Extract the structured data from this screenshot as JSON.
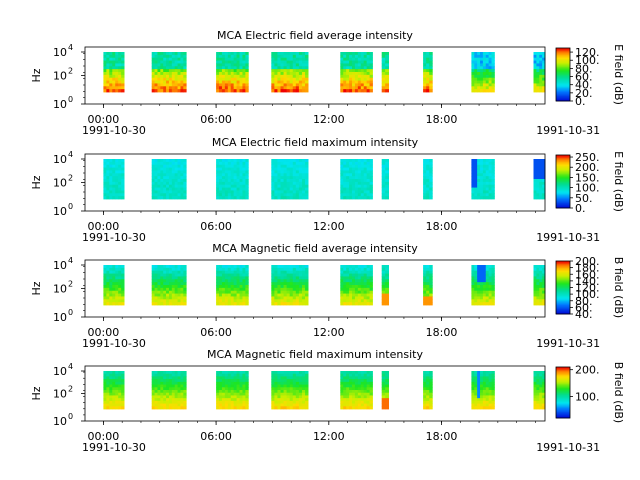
{
  "chart_data": [
    {
      "type": "heatmap",
      "title": "MCA  Electric field average intensity",
      "ylabel": "Hz",
      "cbar_label": "E field (dB)",
      "cbar_ticks": [
        "0.",
        "20.",
        "40.",
        "60.",
        "80.",
        "100.",
        "120."
      ],
      "cbar_range": [
        0,
        130
      ],
      "y_ticks": [
        "10",
        "10",
        "10"
      ],
      "y_exps": [
        "0",
        "2",
        "4"
      ],
      "x_ticks": [
        "00:00",
        "06:00",
        "12:00",
        "18:00",
        "00:00"
      ],
      "date_start": "1991-10-30",
      "date_end": "1991-10-31",
      "pattern": "e_avg"
    },
    {
      "type": "heatmap",
      "title": "MCA  Electric field maximum intensity",
      "ylabel": "Hz",
      "cbar_label": "E field (dB)",
      "cbar_ticks": [
        "0.",
        "50.",
        "100.",
        "150.",
        "200.",
        "250."
      ],
      "cbar_range": [
        0,
        260
      ],
      "y_ticks": [
        "10",
        "10",
        "10"
      ],
      "y_exps": [
        "0",
        "2",
        "4"
      ],
      "x_ticks": [
        "00:00",
        "06:00",
        "12:00",
        "18:00",
        "00:00"
      ],
      "date_start": "1991-10-30",
      "date_end": "1991-10-31",
      "pattern": "e_max"
    },
    {
      "type": "heatmap",
      "title": "MCA  Magnetic field average intensity",
      "ylabel": "Hz",
      "cbar_label": "B field (dB)",
      "cbar_ticks": [
        "40.",
        "60.",
        "80.",
        "100.",
        "120.",
        "140.",
        "160.",
        "180.",
        "200."
      ],
      "cbar_range": [
        40,
        200
      ],
      "y_ticks": [
        "10",
        "10",
        "10"
      ],
      "y_exps": [
        "0",
        "2",
        "4"
      ],
      "x_ticks": [
        "00:00",
        "06:00",
        "12:00",
        "18:00",
        "00:00"
      ],
      "date_start": "1991-10-30",
      "date_end": "1991-10-31",
      "pattern": "b_avg"
    },
    {
      "type": "heatmap",
      "title": "MCA  Magnetic field maximum intensity",
      "ylabel": "Hz",
      "cbar_label": "B field (dB)",
      "cbar_ticks": [
        "100.",
        "200."
      ],
      "cbar_range": [
        20,
        210
      ],
      "y_ticks": [
        "10",
        "10",
        "10"
      ],
      "y_exps": [
        "0",
        "2",
        "4"
      ],
      "x_ticks": [
        "00:00",
        "06:00",
        "12:00",
        "18:00",
        "00:00"
      ],
      "date_start": "1991-10-30",
      "date_end": "1991-10-31",
      "pattern": "b_max"
    }
  ]
}
